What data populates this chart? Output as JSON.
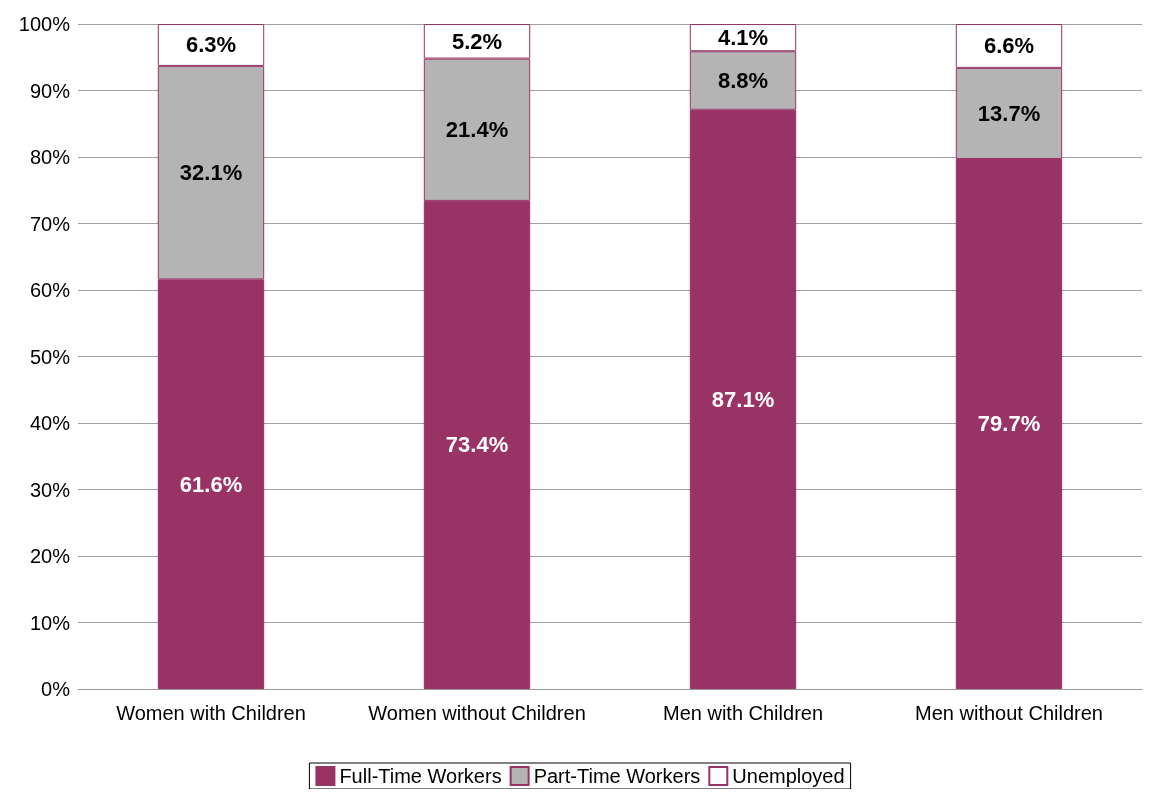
{
  "chart_data": {
    "type": "bar",
    "stacked": true,
    "categories": [
      "Women with Children",
      "Women without Children",
      "Men with Children",
      "Men without Children"
    ],
    "series": [
      {
        "name": "Full-Time Workers",
        "color": "#993366",
        "values": [
          61.6,
          73.4,
          87.1,
          79.7
        ],
        "value_labels": [
          "61.6%",
          "73.4%",
          "87.1%",
          "79.7%"
        ]
      },
      {
        "name": "Part-Time Workers",
        "color": "#b4b4b4",
        "values": [
          32.1,
          21.4,
          8.8,
          13.7
        ],
        "value_labels": [
          "32.1%",
          "21.4%",
          "8.8%",
          "13.7%"
        ]
      },
      {
        "name": "Unemployed",
        "color": "#ffffff",
        "values": [
          6.3,
          5.2,
          4.1,
          6.6
        ],
        "value_labels": [
          "6.3%",
          "5.2%",
          "4.1%",
          "6.6%"
        ]
      }
    ],
    "ylim": [
      0,
      100
    ],
    "yticks": [
      {
        "value": 0,
        "label": "0%"
      },
      {
        "value": 10,
        "label": "10%"
      },
      {
        "value": 20,
        "label": "20%"
      },
      {
        "value": 30,
        "label": "30%"
      },
      {
        "value": 40,
        "label": "40%"
      },
      {
        "value": 50,
        "label": "50%"
      },
      {
        "value": 60,
        "label": "60%"
      },
      {
        "value": 70,
        "label": "70%"
      },
      {
        "value": 80,
        "label": "80%"
      },
      {
        "value": 90,
        "label": "90%"
      },
      {
        "value": 100,
        "label": "100%"
      }
    ],
    "grid": "y",
    "legend": "bottom"
  }
}
